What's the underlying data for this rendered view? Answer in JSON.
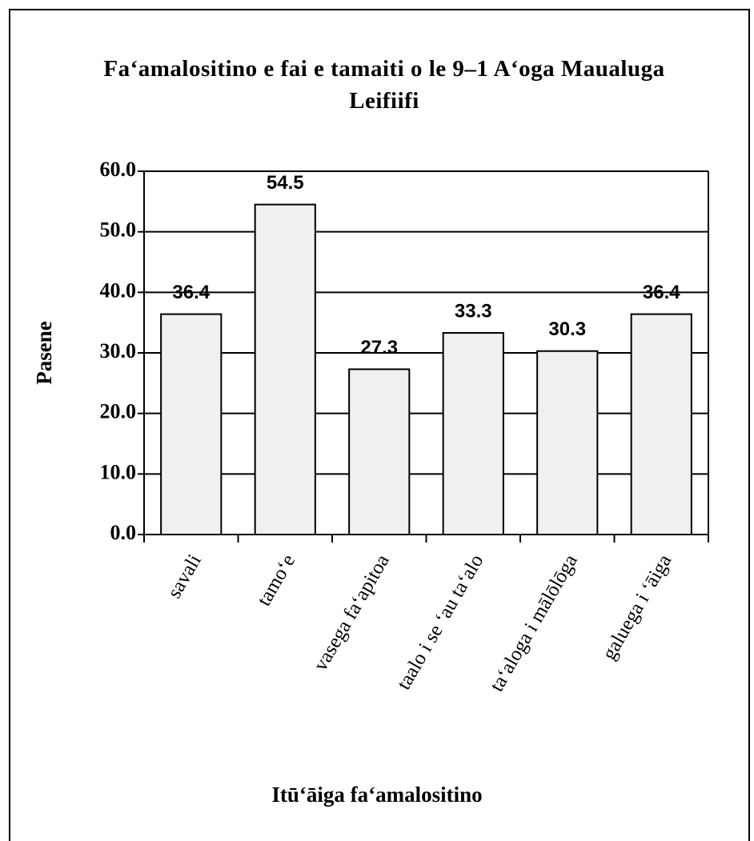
{
  "chart_data": {
    "type": "bar",
    "title": "Fa‘amalositino e fai e tamaiti o le 9–1 A‘oga Maualuga Leifiifi",
    "x_label": "Itū‘āiga fa‘amalositino",
    "y_label": "Pasene",
    "categories": [
      "savali",
      "tamo‘e",
      "vasega fa‘apitoa",
      "taalo i se ‘au ta‘alo",
      "ta‘aloga i mālōlōga",
      "galuega i ‘āiga"
    ],
    "values": [
      36.4,
      54.5,
      27.3,
      33.3,
      30.3,
      36.4
    ],
    "color": "#f0f0f0",
    "ylim": [
      0,
      60
    ],
    "yticks": [
      {
        "value": 0,
        "label": "0.0"
      },
      {
        "value": 10,
        "label": "10.0"
      },
      {
        "value": 20,
        "label": "20.0"
      },
      {
        "value": 30,
        "label": "30.0"
      },
      {
        "value": 40,
        "label": "40.0"
      },
      {
        "value": 50,
        "label": "50.0"
      },
      {
        "value": 60,
        "label": "60.0"
      }
    ],
    "grid": true
  }
}
